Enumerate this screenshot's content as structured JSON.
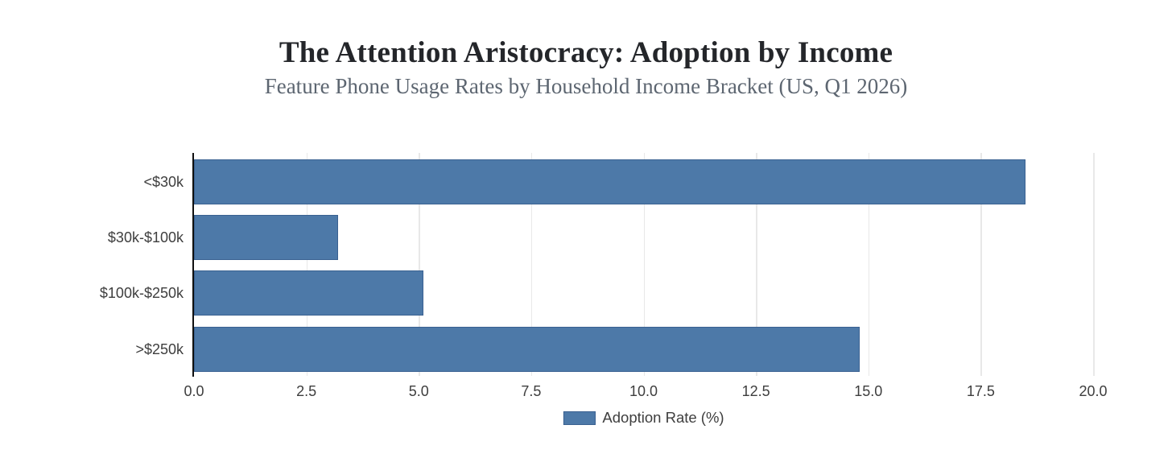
{
  "page": {
    "title": "The Attention Aristocracy: Adoption by Income",
    "subtitle": "Feature Phone Usage Rates by Household Income Bracket (US, Q1 2026)"
  },
  "legend": {
    "label": "Adoption Rate (%)"
  },
  "colors": {
    "bar_fill": "#4d79a8",
    "bar_stroke": "#3a6191",
    "gridline": "#e8e8e8",
    "axis_spine": "#101010",
    "tick_label": "#3e3e3e",
    "title": "#24262a",
    "subtitle": "#5d6671",
    "background": "#ffffff"
  },
  "chart_data": {
    "type": "bar",
    "orientation": "horizontal",
    "title": "The Attention Aristocracy: Adoption by Income",
    "subtitle": "Feature Phone Usage Rates by Household Income Bracket (US, Q1 2026)",
    "categories": [
      "<$30k",
      "$30k-$100k",
      "$100k-$250k",
      ">$250k"
    ],
    "values": [
      18.5,
      3.2,
      5.1,
      14.8
    ],
    "series_name": "Adoption Rate (%)",
    "xlabel": "",
    "ylabel": "",
    "xlim": [
      0,
      20
    ],
    "xticks": [
      0,
      2.5,
      5,
      7.5,
      10,
      12.5,
      15,
      17.5,
      20
    ],
    "xtick_labels": [
      "0.0",
      "2.5",
      "5.0",
      "7.5",
      "10.0",
      "12.5",
      "15.0",
      "17.5",
      "20.0"
    ],
    "grid": "vertical-gridlines-on",
    "legend_position": "bottom-center"
  }
}
